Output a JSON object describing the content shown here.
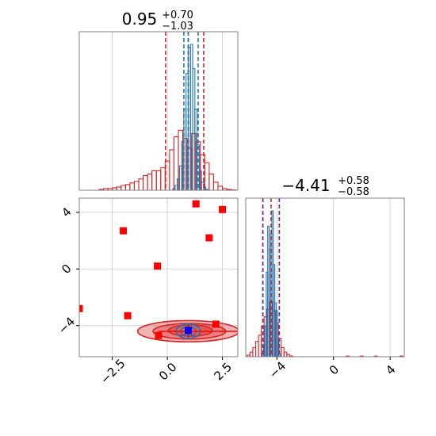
{
  "chart_data": [
    {
      "type": "histogram",
      "panel": "top-left",
      "parameter_index": 0,
      "title": {
        "median": "0.95",
        "plus": "+0.70",
        "minus": "−1.03"
      },
      "xlim": [
        -4,
        3.2
      ],
      "grid": true,
      "y_ticks_visible": false,
      "series": [
        {
          "name": "",
          "color": "#d62728",
          "x": [
            -3.0,
            -2.8,
            -2.6,
            -2.4,
            -2.2,
            -2.0,
            -1.8,
            -1.6,
            -1.4,
            -1.2,
            -1.0,
            -0.8,
            -0.6,
            -0.4,
            -0.2,
            0.0,
            0.2,
            0.4,
            0.6,
            0.8,
            1.0,
            1.2,
            1.4,
            1.6,
            1.8,
            2.0,
            2.2,
            2.4,
            2.6,
            2.8,
            3.0
          ],
          "values": [
            0.005,
            0.01,
            0.01,
            0.015,
            0.02,
            0.03,
            0.035,
            0.045,
            0.055,
            0.07,
            0.09,
            0.1,
            0.12,
            0.12,
            0.14,
            0.18,
            0.25,
            0.33,
            0.37,
            0.32,
            0.26,
            0.35,
            0.3,
            0.22,
            0.17,
            0.1,
            0.05,
            0.025,
            0.01,
            0.005,
            0.002
          ]
        },
        {
          "name": "",
          "color": "#1f77b4",
          "x": [
            0.3,
            0.4,
            0.5,
            0.6,
            0.7,
            0.8,
            0.9,
            1.0,
            1.1,
            1.2,
            1.3,
            1.4,
            1.5,
            1.6,
            1.7,
            1.8
          ],
          "values": [
            0.01,
            0.03,
            0.07,
            0.15,
            0.3,
            0.5,
            0.72,
            0.88,
            0.9,
            0.75,
            0.5,
            0.28,
            0.12,
            0.05,
            0.02,
            0.005
          ]
        }
      ],
      "quantile_lines": [
        {
          "x": -0.08,
          "color": "#d62728"
        },
        {
          "x": 0.95,
          "color": "#d62728"
        },
        {
          "x": 1.65,
          "color": "#d62728"
        },
        {
          "x": 0.75,
          "color": "#1f77b4"
        },
        {
          "x": 0.95,
          "color": "#1f77b4"
        },
        {
          "x": 1.4,
          "color": "#1f77b4"
        }
      ]
    },
    {
      "type": "scatter",
      "panel": "bottom-left",
      "subtype": "2d-density-contour",
      "xlim": [
        -4,
        3.2
      ],
      "ylim": [
        -6.2,
        5
      ],
      "x_ticks": [
        -2.5,
        0.0,
        2.5
      ],
      "x_tick_labels": [
        "−2.5",
        "0.0",
        "2.5"
      ],
      "y_ticks": [
        -4,
        0,
        4
      ],
      "y_tick_labels": [
        "−4",
        "0",
        "4"
      ],
      "grid": true,
      "contours": [
        {
          "color": "#d62728",
          "filled": true,
          "center": [
            0.95,
            -4.4
          ],
          "radii": [
            2.3,
            0.75
          ],
          "opacity": 0.35
        },
        {
          "color": "#d62728",
          "filled": true,
          "center": [
            1.0,
            -4.4
          ],
          "radii": [
            1.65,
            0.55
          ],
          "opacity": 0.35
        },
        {
          "color": "#d62728",
          "filled": true,
          "center": [
            1.05,
            -4.35
          ],
          "radii": [
            1.0,
            0.4
          ],
          "opacity": 0.45
        },
        {
          "color": "#1f77b4",
          "filled": false,
          "center": [
            0.95,
            -4.4
          ],
          "radii": [
            0.55,
            0.5
          ],
          "opacity": 1
        },
        {
          "color": "#1f77b4",
          "filled": false,
          "center": [
            0.95,
            -4.4
          ],
          "radii": [
            0.35,
            0.32
          ],
          "opacity": 1
        }
      ],
      "points": [
        {
          "x": 1.3,
          "y": 4.6,
          "color": "#ff0000"
        },
        {
          "x": 2.5,
          "y": 4.2,
          "color": "#ff0000"
        },
        {
          "x": -2.0,
          "y": 2.7,
          "color": "#ff0000"
        },
        {
          "x": 1.9,
          "y": 2.2,
          "color": "#ff0000"
        },
        {
          "x": -0.45,
          "y": 0.2,
          "color": "#ff0000"
        },
        {
          "x": -4.0,
          "y": -2.8,
          "color": "#ff0000"
        },
        {
          "x": -1.8,
          "y": -3.3,
          "color": "#ff0000"
        },
        {
          "x": 2.2,
          "y": -3.9,
          "color": "#ff0000"
        },
        {
          "x": -0.4,
          "y": -4.7,
          "color": "#ff0000"
        },
        {
          "x": 0.95,
          "y": -4.35,
          "color": "#0000ff"
        }
      ],
      "crosshair": {
        "x": 0.95,
        "y": -4.41,
        "color": "#ff0000"
      }
    },
    {
      "type": "histogram",
      "panel": "bottom-right",
      "parameter_index": 1,
      "title": {
        "median": "−4.41",
        "plus": "+0.58",
        "minus": "−0.58"
      },
      "xlim": [
        -6.2,
        5
      ],
      "x_ticks": [
        -4,
        0,
        4
      ],
      "x_tick_labels": [
        "−4",
        "0",
        "4"
      ],
      "grid": true,
      "y_ticks_visible": false,
      "series": [
        {
          "name": "",
          "color": "#d62728",
          "x": [
            -6.0,
            -5.8,
            -5.6,
            -5.4,
            -5.2,
            -5.0,
            -4.8,
            -4.6,
            -4.4,
            -4.2,
            -4.0,
            -3.8,
            -3.6,
            -3.4,
            -3.2,
            -3.0,
            1.0,
            2.0,
            3.0,
            4.8
          ],
          "values": [
            0.01,
            0.03,
            0.06,
            0.1,
            0.14,
            0.2,
            0.26,
            0.31,
            0.36,
            0.3,
            0.22,
            0.12,
            0.06,
            0.03,
            0.015,
            0.005,
            0.004,
            0.004,
            0.004,
            0.005
          ]
        },
        {
          "name": "",
          "color": "#1f77b4",
          "x": [
            -5.0,
            -4.9,
            -4.8,
            -4.7,
            -4.6,
            -4.5,
            -4.4,
            -4.3,
            -4.2,
            -4.1,
            -4.0,
            -3.9,
            -3.8
          ],
          "values": [
            0.02,
            0.08,
            0.2,
            0.55,
            0.85,
            0.7,
            0.8,
            0.95,
            0.6,
            0.35,
            0.3,
            0.1,
            0.02
          ]
        }
      ],
      "quantile_lines": [
        {
          "x": -4.99,
          "color": "#d62728"
        },
        {
          "x": -4.41,
          "color": "#d62728"
        },
        {
          "x": -3.83,
          "color": "#d62728"
        },
        {
          "x": -4.99,
          "color": "#7b2a8a"
        },
        {
          "x": -3.83,
          "color": "#7b2a8a"
        }
      ]
    }
  ]
}
